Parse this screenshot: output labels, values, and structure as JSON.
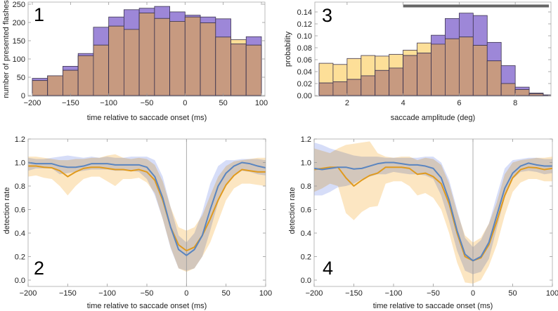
{
  "chart_data": [
    {
      "type": "bar",
      "panel_label": "1",
      "xlabel": "time relative to saccade onset (ms)",
      "ylabel": "number of presented flashes",
      "xlim": [
        -200,
        100
      ],
      "ylim": [
        0,
        250
      ],
      "xticks": [
        -200,
        -150,
        -100,
        -50,
        0,
        50,
        100
      ],
      "yticks": [
        0,
        50,
        100,
        150,
        200,
        250
      ],
      "bin_edges": [
        -200,
        -180,
        -160,
        -140,
        -120,
        -100,
        -80,
        -60,
        -40,
        -20,
        0,
        20,
        40,
        60,
        80,
        100
      ],
      "series": [
        {
          "name": "purple",
          "color": "#9d87d8",
          "values": [
            47,
            54,
            80,
            115,
            187,
            215,
            235,
            239,
            244,
            229,
            220,
            215,
            210,
            141,
            161
          ]
        },
        {
          "name": "yellow",
          "color": "#fddf98",
          "values": [
            41,
            54,
            69,
            109,
            138,
            190,
            181,
            226,
            211,
            203,
            215,
            199,
            160,
            153,
            138
          ]
        }
      ],
      "overlap_color": "#c79a80"
    },
    {
      "type": "line",
      "panel_label": "2",
      "xlabel": "time relative to saccade onset (ms)",
      "ylabel": "detection rate",
      "xlim": [
        -200,
        100
      ],
      "ylim": [
        0,
        1.2
      ],
      "xticks": [
        -200,
        -150,
        -100,
        -50,
        0,
        50,
        100
      ],
      "yticks": [
        "0.0",
        "0.2",
        "0.4",
        "0.6",
        "0.8",
        "1.0",
        "1.2"
      ],
      "x": [
        -200,
        -190,
        -180,
        -170,
        -160,
        -150,
        -140,
        -130,
        -120,
        -110,
        -100,
        -90,
        -80,
        -70,
        -60,
        -50,
        -40,
        -30,
        -20,
        -10,
        0,
        10,
        20,
        30,
        40,
        50,
        60,
        70,
        80,
        90,
        100
      ],
      "series": [
        {
          "name": "blue",
          "color": "#5a85c0",
          "band_color": "#d6ddf8",
          "values": [
            1.0,
            0.99,
            0.99,
            0.99,
            0.97,
            0.96,
            0.96,
            0.97,
            0.99,
            0.99,
            0.99,
            0.98,
            0.98,
            0.98,
            0.98,
            0.96,
            0.88,
            0.7,
            0.45,
            0.26,
            0.21,
            0.26,
            0.38,
            0.6,
            0.8,
            0.91,
            0.97,
            1.0,
            0.99,
            0.97,
            0.955
          ],
          "lo": [
            0.93,
            0.95,
            0.95,
            0.95,
            0.9,
            0.91,
            0.92,
            0.93,
            0.94,
            0.94,
            0.94,
            0.93,
            0.93,
            0.93,
            0.92,
            0.86,
            0.72,
            0.52,
            0.27,
            0.1,
            0.08,
            0.1,
            0.2,
            0.42,
            0.66,
            0.82,
            0.9,
            0.93,
            0.92,
            0.9,
            0.89
          ],
          "hi": [
            1.04,
            1.03,
            1.03,
            1.04,
            1.05,
            1.06,
            1.05,
            1.04,
            1.05,
            1.04,
            1.05,
            1.04,
            1.04,
            1.05,
            1.05,
            1.05,
            1.02,
            0.88,
            0.62,
            0.38,
            0.32,
            0.4,
            0.58,
            0.82,
            0.97,
            1.02,
            1.02,
            1.03,
            1.03,
            1.03,
            1.02
          ]
        },
        {
          "name": "orange",
          "color": "#e09a1e",
          "band_color": "#fce6c2",
          "values": [
            0.97,
            0.97,
            0.96,
            0.955,
            0.93,
            0.88,
            0.92,
            0.95,
            0.96,
            0.96,
            0.95,
            0.94,
            0.94,
            0.93,
            0.94,
            0.92,
            0.85,
            0.68,
            0.45,
            0.3,
            0.25,
            0.28,
            0.38,
            0.52,
            0.68,
            0.81,
            0.89,
            0.94,
            0.93,
            0.92,
            0.92
          ],
          "lo": [
            0.88,
            0.89,
            0.87,
            0.86,
            0.8,
            0.72,
            0.8,
            0.86,
            0.88,
            0.88,
            0.84,
            0.8,
            0.86,
            0.86,
            0.87,
            0.83,
            0.74,
            0.52,
            0.28,
            0.1,
            0.07,
            0.1,
            0.2,
            0.32,
            0.5,
            0.68,
            0.78,
            0.82,
            0.82,
            0.81,
            0.8
          ],
          "hi": [
            1.05,
            1.05,
            1.04,
            1.03,
            1.02,
            1.02,
            1.03,
            1.03,
            1.04,
            1.04,
            1.06,
            1.07,
            1.04,
            1.03,
            1.04,
            1.03,
            0.98,
            0.84,
            0.62,
            0.45,
            0.42,
            0.45,
            0.55,
            0.72,
            0.88,
            0.97,
            1.01,
            1.02,
            1.03,
            1.04,
            1.04
          ]
        }
      ],
      "vline_x": 0
    },
    {
      "type": "bar",
      "panel_label": "3",
      "xlabel": "saccade amplitude (deg)",
      "ylabel": "probability",
      "xlim": [
        1,
        9.2
      ],
      "ylim": [
        0,
        0.15
      ],
      "xticks": [
        2,
        4,
        6,
        8
      ],
      "yticks": [
        "0.00",
        "0.02",
        "0.04",
        "0.06",
        "0.08",
        "0.10",
        "0.12",
        "0.14"
      ],
      "bin_edges": [
        1,
        1.5,
        2,
        2.5,
        3,
        3.5,
        4,
        4.5,
        5,
        5.5,
        6,
        6.5,
        7,
        7.5,
        8,
        8.5,
        9,
        9.5
      ],
      "series": [
        {
          "name": "purple",
          "color": "#9d87d8",
          "values": [
            0.021,
            0.023,
            0.027,
            0.033,
            0.042,
            0.046,
            0.067,
            0.071,
            0.101,
            0.129,
            0.138,
            0.134,
            0.089,
            0.05,
            0.014,
            0.004,
            0.001
          ]
        },
        {
          "name": "yellow",
          "color": "#fddf98",
          "values": [
            0.054,
            0.052,
            0.062,
            0.067,
            0.066,
            0.069,
            0.076,
            0.088,
            0.086,
            0.095,
            0.098,
            0.084,
            0.058,
            0.02,
            0.01,
            0.003,
            0.0
          ]
        }
      ],
      "overlap_color": "#c79a80",
      "range_bar": {
        "from": 4,
        "to": 9.2,
        "y": 0.15,
        "color": "#666666"
      }
    },
    {
      "type": "line",
      "panel_label": "4",
      "xlabel": "time relative to saccade onset (ms)",
      "ylabel": "detection rate",
      "xlim": [
        -200,
        100
      ],
      "ylim": [
        0,
        1.2
      ],
      "xticks": [
        -200,
        -150,
        -100,
        -50,
        0,
        50,
        100
      ],
      "yticks": [
        "0.0",
        "0.2",
        "0.4",
        "0.6",
        "0.8",
        "1.0",
        "1.2"
      ],
      "x": [
        -200,
        -190,
        -180,
        -170,
        -160,
        -150,
        -140,
        -130,
        -120,
        -110,
        -100,
        -90,
        -80,
        -70,
        -60,
        -50,
        -40,
        -30,
        -20,
        -10,
        0,
        10,
        20,
        30,
        40,
        50,
        60,
        70,
        80,
        90,
        100
      ],
      "series": [
        {
          "name": "blue",
          "color": "#5a85c0",
          "band_color": "#d6ddf8",
          "values": [
            0.95,
            0.94,
            0.95,
            0.96,
            0.96,
            0.945,
            0.95,
            0.97,
            0.99,
            1.0,
            1.0,
            0.99,
            0.98,
            0.98,
            0.97,
            0.95,
            0.87,
            0.68,
            0.42,
            0.22,
            0.165,
            0.2,
            0.32,
            0.55,
            0.78,
            0.91,
            0.97,
            0.995,
            0.98,
            0.97,
            0.97
          ],
          "lo": [
            0.72,
            0.72,
            0.75,
            0.79,
            0.8,
            0.82,
            0.86,
            0.88,
            0.9,
            0.9,
            0.92,
            0.91,
            0.9,
            0.9,
            0.89,
            0.86,
            0.72,
            0.5,
            0.25,
            0.08,
            0.05,
            0.07,
            0.18,
            0.44,
            0.7,
            0.86,
            0.92,
            0.93,
            0.92,
            0.9,
            0.91
          ],
          "hi": [
            1.17,
            1.15,
            1.12,
            1.1,
            1.08,
            1.06,
            1.05,
            1.05,
            1.05,
            1.04,
            1.04,
            1.04,
            1.04,
            1.04,
            1.05,
            1.05,
            1.0,
            0.85,
            0.6,
            0.36,
            0.28,
            0.34,
            0.48,
            0.72,
            0.95,
            1.02,
            1.03,
            1.04,
            1.04,
            1.03,
            1.03
          ]
        },
        {
          "name": "orange",
          "color": "#e09a1e",
          "band_color": "#fce6c2",
          "values": [
            0.94,
            0.95,
            0.96,
            0.96,
            0.87,
            0.8,
            0.85,
            0.89,
            0.91,
            0.96,
            0.96,
            0.96,
            0.95,
            0.9,
            0.91,
            0.88,
            0.82,
            0.65,
            0.4,
            0.2,
            0.165,
            0.19,
            0.3,
            0.5,
            0.72,
            0.87,
            0.94,
            0.96,
            0.955,
            0.94,
            0.95
          ],
          "lo": [
            0.75,
            0.78,
            0.82,
            0.8,
            0.57,
            0.51,
            0.58,
            0.62,
            0.63,
            0.82,
            0.84,
            0.84,
            0.8,
            0.72,
            0.74,
            0.7,
            0.6,
            0.4,
            0.15,
            -0.02,
            -0.03,
            0.0,
            0.12,
            0.3,
            0.55,
            0.75,
            0.83,
            0.86,
            0.86,
            0.84,
            0.84
          ],
          "hi": [
            1.12,
            1.1,
            1.08,
            1.12,
            1.15,
            1.16,
            1.17,
            1.18,
            1.08,
            1.05,
            1.04,
            1.05,
            1.05,
            1.02,
            1.04,
            1.03,
            0.98,
            0.82,
            0.58,
            0.38,
            0.32,
            0.36,
            0.48,
            0.66,
            0.9,
            1.0,
            1.02,
            1.03,
            1.04,
            1.04,
            1.05
          ]
        }
      ],
      "vline_x": 0
    }
  ]
}
